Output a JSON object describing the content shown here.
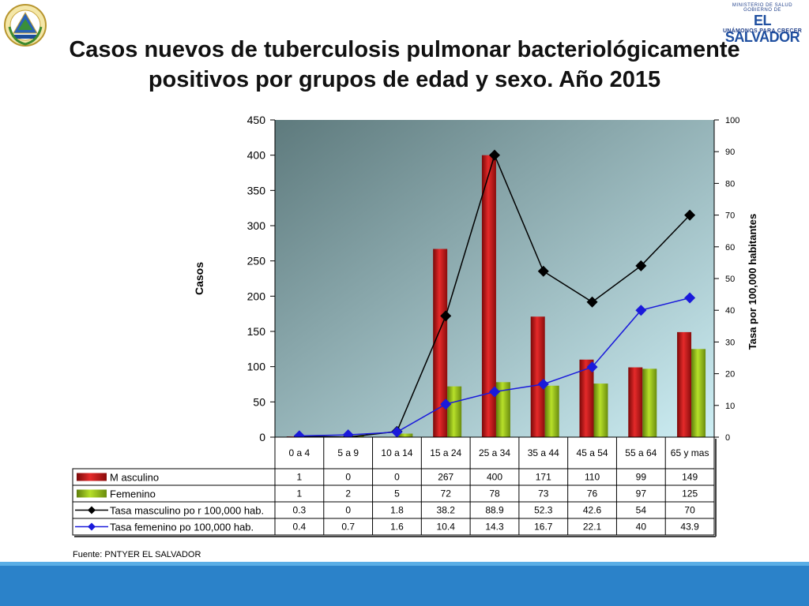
{
  "slide": {
    "title_line1": "Casos nuevos de tuberculosis pulmonar bacteriológicamente",
    "title_line2": "positivos por grupos de edad y sexo.  Año 2015",
    "source": "Fuente: PNTYER EL SALVADOR"
  },
  "logo": {
    "line1": "MINISTERIO DE SALUD",
    "line2": "GOBIERNO DE",
    "line3": "EL SALVADOR",
    "line4": "UNÁMONOS PARA CRECER"
  },
  "colors": {
    "male_bar": "#d41c1c",
    "female_bar": "#9dc81d",
    "male_line": "#000000",
    "female_line": "#1a1adb",
    "plot_bg_dark": "#5e7a7d",
    "plot_bg_light": "#cdeef4",
    "footer": "#2b82c9"
  },
  "icons": {
    "seal": "coat-of-arms-icon",
    "logo": "gobierno-el-salvador-logo"
  },
  "chart_data": {
    "type": "bar",
    "categories": [
      "0 a 4",
      "5 a 9",
      "10 a 14",
      "15 a 24",
      "25 a 34",
      "35 a 44",
      "45 a 54",
      "55 a 64",
      "65 y mas"
    ],
    "ylabel": "Casos",
    "y2label": "Tasa por 100,000 habitantes",
    "ylim": [
      0,
      450
    ],
    "yticks": [
      0,
      50,
      100,
      150,
      200,
      250,
      300,
      350,
      400,
      450
    ],
    "y2lim": [
      0,
      100
    ],
    "y2ticks": [
      0,
      10,
      20,
      30,
      40,
      50,
      60,
      70,
      80,
      90,
      100
    ],
    "grid": false,
    "legend": "data-table",
    "series": [
      {
        "name": "M asculino",
        "type": "bar",
        "axis": "left",
        "values": [
          1,
          0,
          0,
          267,
          400,
          171,
          110,
          99,
          149
        ],
        "labels": [
          "1",
          "0",
          "0",
          "267",
          "400",
          "171",
          "110",
          "99",
          "149"
        ]
      },
      {
        "name": "Femenino",
        "type": "bar",
        "axis": "left",
        "values": [
          1,
          2,
          5,
          72,
          78,
          73,
          76,
          97,
          125
        ],
        "labels": [
          "1",
          "2",
          "5",
          "72",
          "78",
          "73",
          "76",
          "97",
          "125"
        ]
      },
      {
        "name": "Tasa masculino po r 100,000 hab.",
        "type": "line",
        "axis": "right",
        "marker": "diamond",
        "values": [
          0.3,
          0,
          1.8,
          38.2,
          88.9,
          52.3,
          42.6,
          54,
          70
        ],
        "labels": [
          "0.3",
          "0",
          "1.8",
          "38.2",
          "88.9",
          "52.3",
          "42.6",
          "54",
          "70"
        ]
      },
      {
        "name": "Tasa femenino po 100,000 hab.",
        "type": "line",
        "axis": "right",
        "marker": "diamond",
        "values": [
          0.4,
          0.7,
          1.6,
          10.4,
          14.3,
          16.7,
          22.1,
          40,
          43.9
        ],
        "labels": [
          "0.4",
          "0.7",
          "1.6",
          "10.4",
          "14.3",
          "16.7",
          "22.1",
          "40",
          "43.9"
        ]
      }
    ]
  }
}
